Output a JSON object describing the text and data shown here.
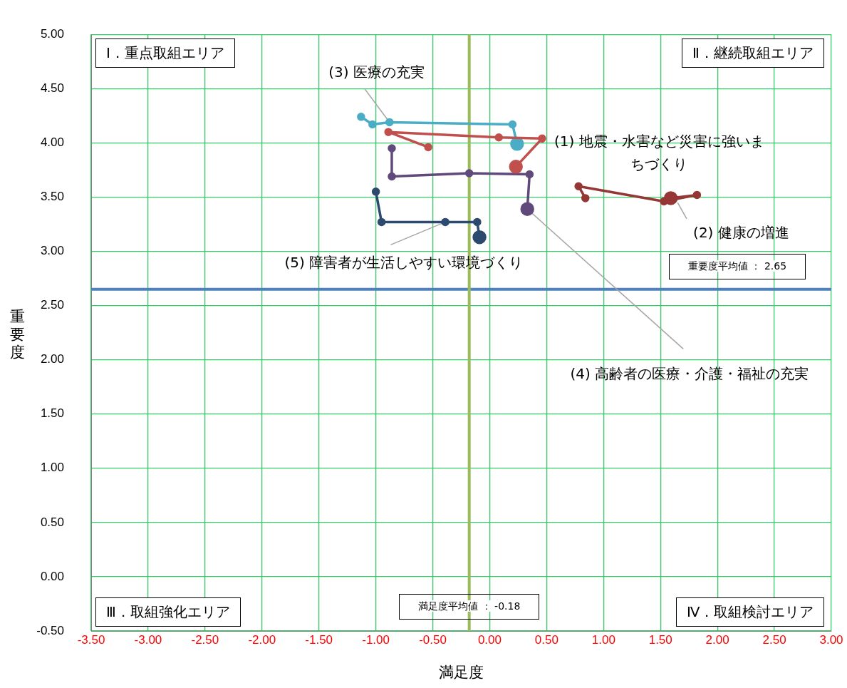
{
  "chart_data": {
    "type": "line",
    "xlabel": "満足度",
    "ylabel": "重要度",
    "marker": "circle",
    "grid": true,
    "legend": false,
    "xlim": [
      -3.5,
      3
    ],
    "ylim": [
      -0.5,
      5
    ],
    "xticks": [
      {
        "value": -3.5,
        "label": "-3.50"
      },
      {
        "value": -3,
        "label": "-3.00"
      },
      {
        "value": -2.5,
        "label": "-2.50"
      },
      {
        "value": -2,
        "label": "-2.00"
      },
      {
        "value": -1.5,
        "label": "-1.50"
      },
      {
        "value": -1,
        "label": "-1.00"
      },
      {
        "value": -0.5,
        "label": "-0.50"
      },
      {
        "value": 0,
        "label": "0.00"
      },
      {
        "value": 0.5,
        "label": "0.50"
      },
      {
        "value": 1,
        "label": "1.00"
      },
      {
        "value": 1.5,
        "label": "1.50"
      },
      {
        "value": 2,
        "label": "2.00"
      },
      {
        "value": 2.5,
        "label": "2.50"
      },
      {
        "value": 3,
        "label": "3.00"
      }
    ],
    "yticks": [
      {
        "value": -0.5,
        "label": "-0.50"
      },
      {
        "value": 0,
        "label": "0.00"
      },
      {
        "value": 0.5,
        "label": "0.50"
      },
      {
        "value": 1,
        "label": "1.00"
      },
      {
        "value": 1.5,
        "label": "1.50"
      },
      {
        "value": 2,
        "label": "2.00"
      },
      {
        "value": 2.5,
        "label": "2.50"
      },
      {
        "value": 3,
        "label": "3.00"
      },
      {
        "value": 3.5,
        "label": "3.50"
      },
      {
        "value": 4,
        "label": "4.00"
      },
      {
        "value": 4.5,
        "label": "4.50"
      },
      {
        "value": 5,
        "label": "5.00"
      }
    ],
    "series": [
      {
        "name": "(1) 地震・水害など災害に強いまちづくり",
        "color": "#c0504d",
        "x": [
          -0.54,
          -0.89,
          0.08,
          0.46,
          0.23
        ],
        "values": [
          3.96,
          4.1,
          4.05,
          4.04,
          3.78
        ]
      },
      {
        "name": "(2) 健康の増進",
        "color": "#953735",
        "x": [
          0.84,
          0.78,
          1.53,
          1.82,
          1.59
        ],
        "values": [
          3.49,
          3.6,
          3.46,
          3.52,
          3.49
        ]
      },
      {
        "name": "(3) 医療の充実",
        "color": "#4bacc6",
        "x": [
          -1.13,
          -1.03,
          -0.88,
          0.2,
          0.24
        ],
        "values": [
          4.24,
          4.17,
          4.19,
          4.17,
          3.99
        ]
      },
      {
        "name": "(4) 高齢者の医療・介護・福祉の充実",
        "color": "#604a7b",
        "x": [
          -0.86,
          -0.86,
          -0.18,
          0.35,
          0.33
        ],
        "values": [
          3.95,
          3.69,
          3.72,
          3.71,
          3.39
        ]
      },
      {
        "name": "(5) 障害者が生活しやすい環境づくり",
        "color": "#2c4a6e",
        "x": [
          -1.0,
          -0.95,
          -0.39,
          -0.11,
          -0.09
        ],
        "values": [
          3.55,
          3.27,
          3.27,
          3.27,
          3.13
        ]
      }
    ],
    "ref_lines": [
      {
        "axis": "y",
        "value": 2.65,
        "label": "重要度平均値 ： 2.65",
        "color": "#4f81bd"
      },
      {
        "axis": "x",
        "value": -0.18,
        "label": "満足度平均値 ： -0.18",
        "color": "#9bbb59"
      }
    ],
    "annotations": [
      "Ⅰ．重点取組エリア",
      "Ⅱ．継続取組エリア",
      "Ⅲ．取組強化エリア",
      "Ⅳ．取組検討エリア"
    ]
  }
}
